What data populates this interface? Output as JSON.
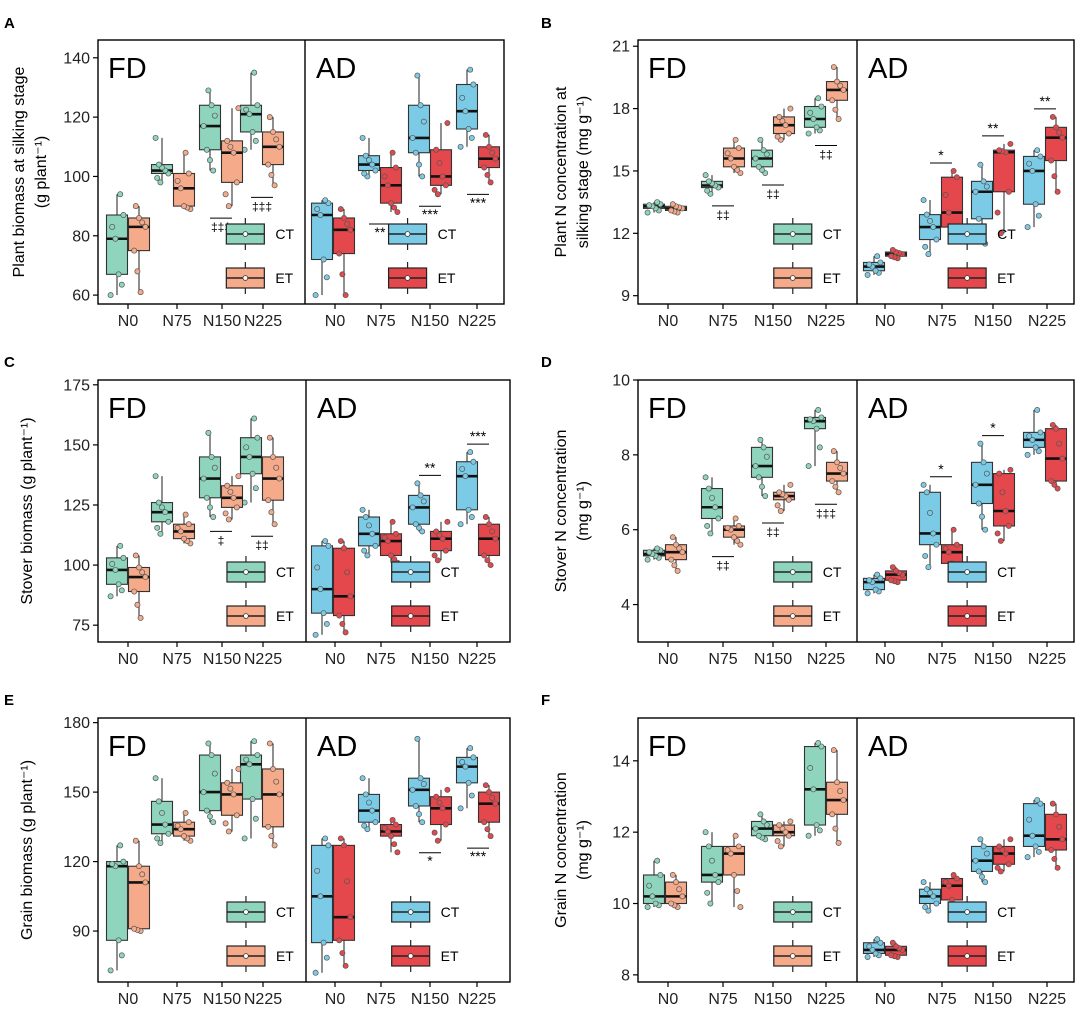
{
  "colors": {
    "FD_CT": "#8fd4bd",
    "FD_ET": "#f5aa8a",
    "AD_CT": "#7ccbe6",
    "AD_ET": "#e5484c",
    "axis": "#000000",
    "box_stroke": "#333333"
  },
  "figure": {
    "legend_ct": "CT",
    "legend_et": "ET",
    "fd_label": "FD",
    "ad_label": "AD"
  },
  "chart_data": [
    {
      "panel": "A",
      "type": "box",
      "ylabel": [
        "Plant biomass at silking stage",
        "(g plant⁻¹)"
      ],
      "ylim": [
        57,
        146
      ],
      "yticks": [
        60,
        80,
        100,
        120,
        140
      ],
      "categories": [
        "N0",
        "N75",
        "N150",
        "N225"
      ],
      "FD": {
        "CT": [
          [
            60,
            67,
            79,
            87,
            94
          ],
          [
            98,
            101,
            102,
            104,
            113
          ],
          [
            102,
            109,
            117,
            124,
            129
          ],
          [
            109,
            115,
            121,
            124,
            135
          ]
        ],
        "ET": [
          [
            61,
            75,
            83,
            86,
            90
          ],
          [
            89,
            90,
            96,
            101,
            108
          ],
          [
            90,
            98,
            108,
            112,
            123
          ],
          [
            97,
            104,
            110,
            115,
            120
          ]
        ]
      },
      "AD": {
        "CT": [
          [
            60,
            72,
            87,
            91,
            92
          ],
          [
            100,
            102,
            104,
            107,
            113
          ],
          [
            100,
            108,
            113,
            124,
            134
          ],
          [
            110,
            116,
            122,
            131,
            136
          ]
        ],
        "ET": [
          [
            60,
            74,
            82,
            86,
            89
          ],
          [
            88,
            91,
            97,
            103,
            108
          ],
          [
            94,
            97,
            100,
            109,
            118
          ],
          [
            98,
            103,
            106,
            110,
            114
          ]
        ]
      },
      "FD_marks": [
        {
          "i": 2,
          "t": "‡‡‡"
        },
        {
          "i": 3,
          "t": "‡‡‡"
        }
      ],
      "AD_marks": [
        {
          "i": 1,
          "t": "**"
        },
        {
          "i": 2,
          "t": "***"
        },
        {
          "i": 3,
          "t": "***"
        }
      ]
    },
    {
      "panel": "B",
      "type": "box",
      "ylabel": [
        "Plant N concentration at",
        "silking stage (mg g⁻¹)"
      ],
      "ylim": [
        8.6,
        21.3
      ],
      "yticks": [
        9,
        12,
        15,
        18,
        21
      ],
      "categories": [
        "N0",
        "N75",
        "N150",
        "N225"
      ],
      "FD": {
        "CT": [
          [
            13.0,
            13.2,
            13.3,
            13.4,
            13.5
          ],
          [
            13.9,
            14.2,
            14.3,
            14.5,
            14.8
          ],
          [
            14.9,
            15.2,
            15.6,
            16.0,
            16.5
          ],
          [
            16.8,
            17.1,
            17.5,
            18.1,
            18.5
          ]
        ],
        "ET": [
          [
            13.0,
            13.1,
            13.2,
            13.3,
            13.4
          ],
          [
            14.9,
            15.2,
            15.6,
            16.1,
            16.5
          ],
          [
            16.5,
            16.8,
            17.2,
            17.6,
            18.0
          ],
          [
            17.5,
            18.4,
            18.9,
            19.3,
            20.0
          ]
        ]
      },
      "AD": {
        "CT": [
          [
            10.0,
            10.2,
            10.4,
            10.6,
            10.9
          ],
          [
            11.0,
            11.7,
            12.3,
            12.9,
            13.6
          ],
          [
            11.5,
            12.7,
            14.0,
            14.5,
            15.3
          ],
          [
            12.3,
            13.4,
            15.0,
            15.7,
            16.0
          ]
        ],
        "ET": [
          [
            10.8,
            10.9,
            11.0,
            11.1,
            11.2
          ],
          [
            11.9,
            12.3,
            13.0,
            14.7,
            15.0
          ],
          [
            12.0,
            14.0,
            15.9,
            16.0,
            16.3
          ],
          [
            14.0,
            15.5,
            16.6,
            17.1,
            17.6
          ]
        ]
      },
      "FD_marks": [
        {
          "i": 1,
          "t": "‡‡"
        },
        {
          "i": 2,
          "t": "‡‡"
        },
        {
          "i": 3,
          "t": "‡‡"
        }
      ],
      "AD_marks": [
        {
          "i": 1,
          "t": "*"
        },
        {
          "i": 2,
          "t": "**"
        },
        {
          "i": 3,
          "t": "**"
        }
      ]
    },
    {
      "panel": "C",
      "type": "box",
      "ylabel": [
        "Stover biomass (g plant⁻¹)"
      ],
      "ylim": [
        68,
        177
      ],
      "yticks": [
        75,
        100,
        125,
        150,
        175
      ],
      "categories": [
        "N0",
        "N75",
        "N150",
        "N225"
      ],
      "FD": {
        "CT": [
          [
            87,
            92,
            98,
            103,
            108
          ],
          [
            113,
            118,
            122,
            126,
            137
          ],
          [
            120,
            128,
            136,
            145,
            155
          ],
          [
            126,
            138,
            145,
            153,
            161
          ]
        ],
        "ET": [
          [
            78,
            89,
            95,
            99,
            104
          ],
          [
            109,
            111,
            114,
            117,
            121
          ],
          [
            119,
            124,
            128,
            133,
            137
          ],
          [
            117,
            127,
            136,
            145,
            153
          ]
        ]
      },
      "AD": {
        "CT": [
          [
            71,
            80,
            90,
            108,
            110
          ],
          [
            104,
            108,
            113,
            120,
            123
          ],
          [
            114,
            117,
            124,
            129,
            134
          ],
          [
            117,
            123,
            137,
            143,
            147
          ]
        ],
        "ET": [
          [
            72,
            79,
            87,
            107,
            110
          ],
          [
            101,
            104,
            110,
            113,
            118
          ],
          [
            102,
            106,
            111,
            114,
            118
          ],
          [
            100,
            104,
            111,
            117,
            120
          ]
        ]
      },
      "FD_marks": [
        {
          "i": 2,
          "t": "‡"
        },
        {
          "i": 3,
          "t": "‡‡"
        }
      ],
      "AD_marks": [
        {
          "i": 2,
          "t": "**"
        },
        {
          "i": 3,
          "t": "***"
        }
      ]
    },
    {
      "panel": "D",
      "type": "box",
      "ylabel": [
        "Stover N concentration",
        "(mg g⁻¹)"
      ],
      "ylim": [
        3.0,
        10.0
      ],
      "yticks": [
        4,
        6,
        8,
        10
      ],
      "categories": [
        "N0",
        "N75",
        "N150",
        "N225"
      ],
      "FD": {
        "CT": [
          [
            5.2,
            5.3,
            5.35,
            5.45,
            5.5
          ],
          [
            5.9,
            6.3,
            6.6,
            7.1,
            7.4
          ],
          [
            6.9,
            7.4,
            7.7,
            8.2,
            8.4
          ],
          [
            7.7,
            8.7,
            8.9,
            9.0,
            9.2
          ]
        ],
        "ET": [
          [
            4.9,
            5.2,
            5.4,
            5.6,
            5.8
          ],
          [
            5.6,
            5.8,
            6.0,
            6.1,
            6.3
          ],
          [
            6.5,
            6.8,
            6.9,
            7.0,
            7.2
          ],
          [
            7.0,
            7.3,
            7.5,
            7.8,
            8.1
          ]
        ]
      },
      "AD": {
        "CT": [
          [
            4.3,
            4.4,
            4.6,
            4.7,
            4.8
          ],
          [
            5.0,
            5.6,
            5.9,
            7.0,
            7.2
          ],
          [
            6.0,
            6.7,
            7.2,
            7.8,
            8.3
          ],
          [
            8.0,
            8.2,
            8.4,
            8.6,
            9.2
          ]
        ],
        "ET": [
          [
            4.6,
            4.65,
            4.8,
            4.9,
            5.0
          ],
          [
            4.8,
            5.1,
            5.4,
            5.6,
            6.0
          ],
          [
            5.7,
            6.1,
            6.5,
            7.5,
            7.6
          ],
          [
            7.1,
            7.3,
            7.9,
            8.7,
            8.8
          ]
        ]
      },
      "FD_marks": [
        {
          "i": 1,
          "t": "‡‡"
        },
        {
          "i": 2,
          "t": "‡‡"
        },
        {
          "i": 3,
          "t": "‡‡‡"
        }
      ],
      "AD_marks": [
        {
          "i": 1,
          "t": "*"
        },
        {
          "i": 2,
          "t": "*"
        }
      ]
    },
    {
      "panel": "E",
      "type": "box",
      "ylabel": [
        "Grain biomass (g plant⁻¹)"
      ],
      "ylim": [
        68,
        182
      ],
      "yticks": [
        90,
        120,
        150,
        180
      ],
      "categories": [
        "N0",
        "N75",
        "N150",
        "N225"
      ],
      "FD": {
        "CT": [
          [
            73,
            86,
            118,
            120,
            127
          ],
          [
            128,
            132,
            136,
            146,
            156
          ],
          [
            137,
            142,
            150,
            166,
            171
          ],
          [
            130,
            147,
            162,
            166,
            172
          ]
        ],
        "ET": [
          [
            90,
            91,
            111,
            118,
            129
          ],
          [
            129,
            131,
            134,
            137,
            141
          ],
          [
            133,
            140,
            149,
            154,
            160
          ],
          [
            127,
            135,
            149,
            160,
            171
          ]
        ]
      },
      "AD": {
        "CT": [
          [
            72,
            85,
            105,
            127,
            130
          ],
          [
            134,
            137,
            142,
            149,
            156
          ],
          [
            137,
            144,
            151,
            156,
            173
          ],
          [
            143,
            154,
            161,
            165,
            169
          ]
        ],
        "ET": [
          [
            75,
            86,
            96,
            127,
            130
          ],
          [
            124,
            131,
            133,
            136,
            138
          ],
          [
            129,
            136,
            143,
            148,
            151
          ],
          [
            131,
            137,
            145,
            150,
            153
          ]
        ]
      },
      "FD_marks": [],
      "AD_marks": [
        {
          "i": 2,
          "t": "*"
        },
        {
          "i": 3,
          "t": "***"
        }
      ]
    },
    {
      "panel": "F",
      "type": "box",
      "ylabel": [
        "Grain N concentration",
        "(mg g⁻¹)"
      ],
      "ylim": [
        7.8,
        15.2
      ],
      "yticks": [
        8,
        10,
        12,
        14
      ],
      "categories": [
        "N0",
        "N75",
        "N150",
        "N225"
      ],
      "FD": {
        "CT": [
          [
            9.9,
            10.0,
            10.2,
            10.8,
            11.2
          ],
          [
            10.0,
            10.6,
            10.8,
            11.6,
            12.0
          ],
          [
            11.8,
            11.9,
            12.1,
            12.3,
            12.5
          ],
          [
            11.9,
            12.2,
            13.2,
            14.4,
            14.5
          ]
        ],
        "ET": [
          [
            9.9,
            10.0,
            10.2,
            10.6,
            10.8
          ],
          [
            9.9,
            10.8,
            11.4,
            11.6,
            11.9
          ],
          [
            11.6,
            11.9,
            12.0,
            12.2,
            12.3
          ],
          [
            11.7,
            12.5,
            12.9,
            13.4,
            14.3
          ]
        ]
      },
      "AD": {
        "CT": [
          [
            8.5,
            8.6,
            8.7,
            8.9,
            9.0
          ],
          [
            9.8,
            10.0,
            10.2,
            10.4,
            10.6
          ],
          [
            10.6,
            10.9,
            11.2,
            11.6,
            11.8
          ],
          [
            11.3,
            11.6,
            11.9,
            12.8,
            12.9
          ]
        ],
        "ET": [
          [
            8.5,
            8.55,
            8.7,
            8.8,
            8.9
          ],
          [
            9.7,
            10.1,
            10.5,
            10.7,
            10.8
          ],
          [
            10.9,
            11.1,
            11.4,
            11.6,
            11.8
          ],
          [
            11.0,
            11.5,
            11.8,
            12.5,
            12.8
          ]
        ]
      },
      "FD_marks": [],
      "AD_marks": []
    }
  ]
}
